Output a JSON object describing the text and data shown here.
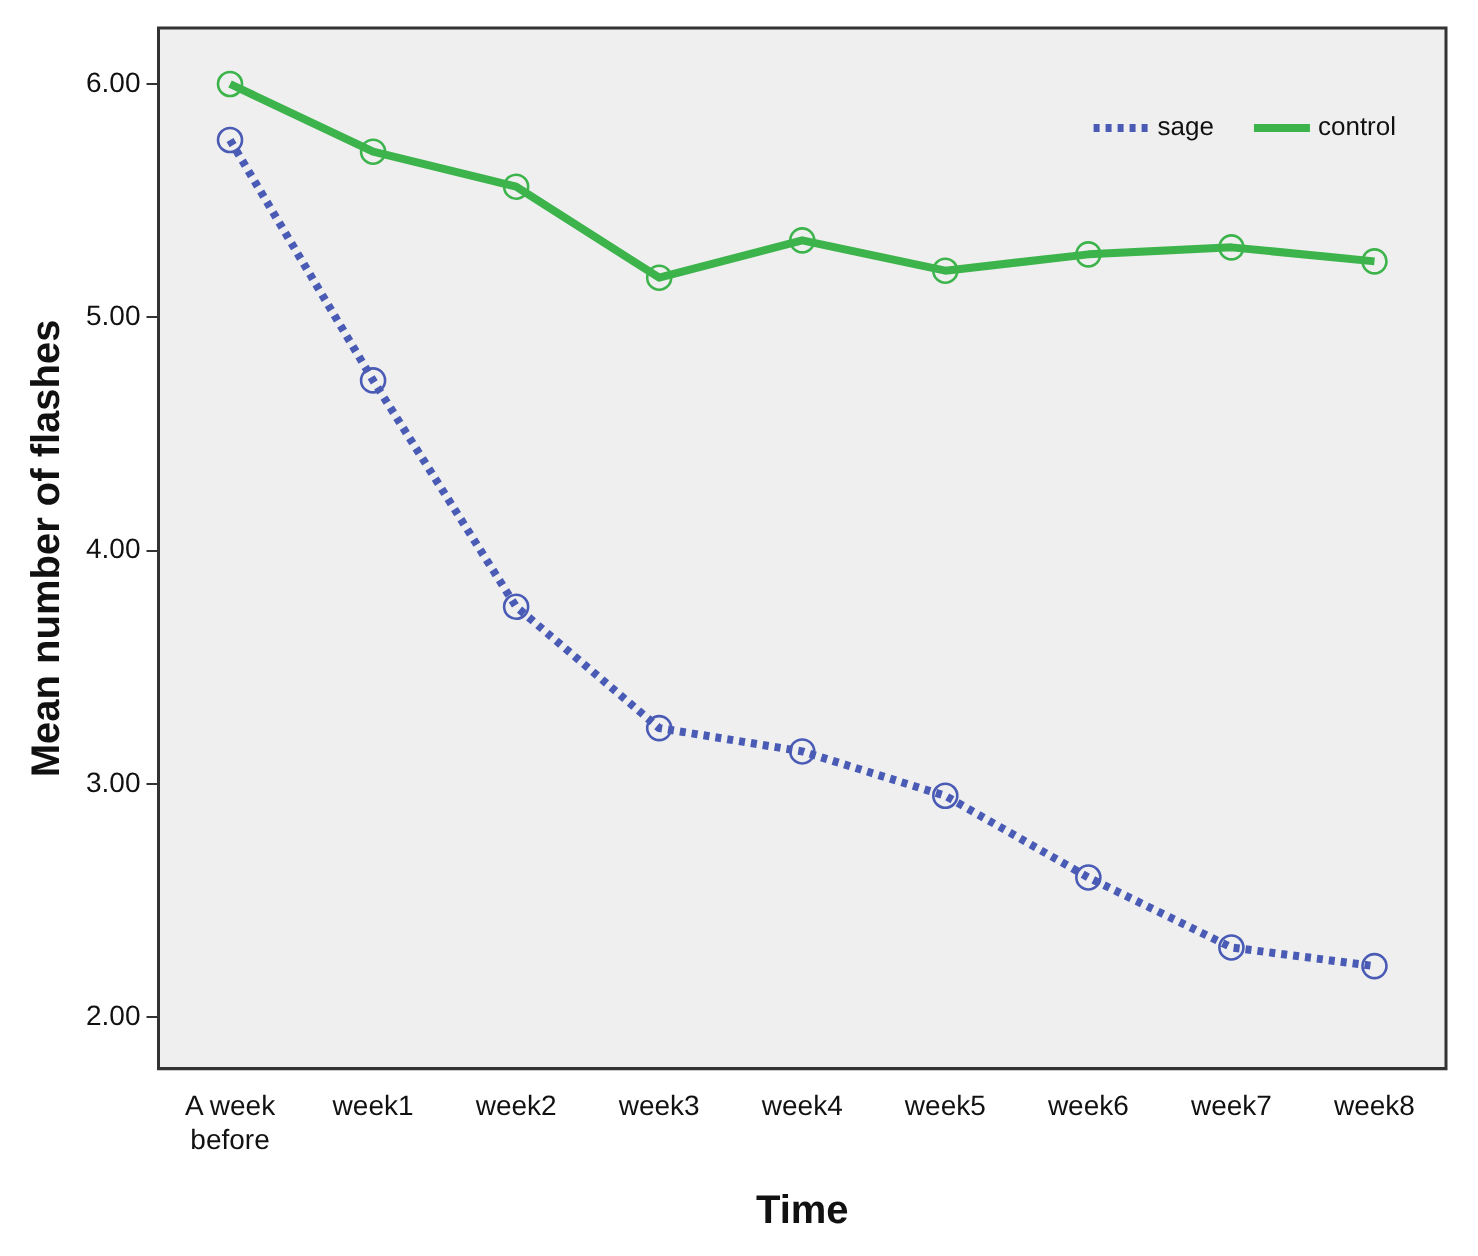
{
  "chart_data": {
    "type": "line",
    "xlabel": "Time",
    "ylabel": "Mean number of flashes",
    "categories": [
      "A week before",
      "week1",
      "week2",
      "week3",
      "week4",
      "week5",
      "week6",
      "week7",
      "week8"
    ],
    "series": [
      {
        "name": "sage",
        "color": "#4a5bb5",
        "line_style": "dotted",
        "values": [
          5.76,
          4.73,
          3.76,
          3.24,
          3.14,
          2.95,
          2.6,
          2.3,
          2.22
        ]
      },
      {
        "name": "control",
        "color": "#3cb44b",
        "line_style": "solid",
        "values": [
          6.0,
          5.71,
          5.56,
          5.17,
          5.33,
          5.2,
          5.27,
          5.3,
          5.24
        ]
      }
    ],
    "ylim": [
      1.78,
      6.24
    ],
    "yticks": [
      {
        "value": 2,
        "label": "2.00"
      },
      {
        "value": 3,
        "label": "3.00"
      },
      {
        "value": 4,
        "label": "4.00"
      },
      {
        "value": 5,
        "label": "5.00"
      },
      {
        "value": 6,
        "label": "6.00"
      }
    ],
    "grid": false,
    "legend": "top right",
    "marker": "circle"
  }
}
